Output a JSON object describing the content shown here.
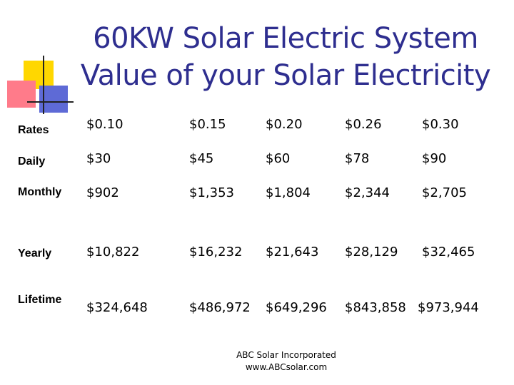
{
  "title": {
    "line1": "60KW Solar Electric System",
    "line2": "Value of your Solar Electricity"
  },
  "table": {
    "rows": [
      {
        "label": "Rates",
        "values": [
          "$0.10",
          "$0.15",
          "$0.20",
          "$0.26",
          "$0.30"
        ]
      },
      {
        "label": "Daily",
        "values": [
          "$30",
          "$45",
          "$60",
          "$78",
          "$90"
        ]
      },
      {
        "label": "Monthly",
        "values": [
          "$902",
          "$1,353",
          "$1,804",
          "$2,344",
          "$2,705"
        ]
      },
      {
        "label": "Yearly",
        "values": [
          "$10,822",
          "$16,232",
          "$21,643",
          "$28,129",
          "$32,465"
        ]
      },
      {
        "label": "Lifetime",
        "values": [
          "$324,648",
          "$486,972",
          "$649,296",
          "$843,858",
          "$973,944"
        ]
      }
    ]
  },
  "footer": {
    "company": "ABC Solar Incorporated",
    "website": "www.ABCsolar.com"
  },
  "colors": {
    "title": "#2e2e8f",
    "logo_yellow": "#ffd700",
    "logo_red": "#ff7b8a",
    "logo_blue": "#5e6ad6"
  }
}
